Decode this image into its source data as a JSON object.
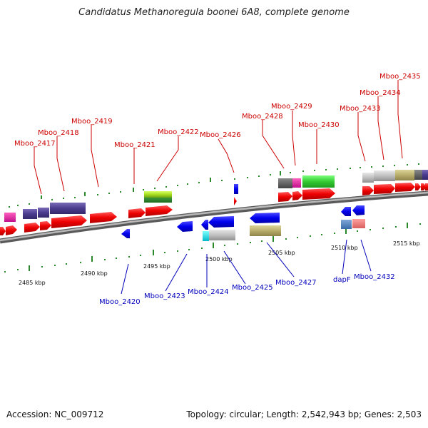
{
  "title": "Candidatus Methanoregula boonei 6A8, complete genome",
  "footer": {
    "accession": "Accession: NC_009712",
    "topology": "Topology: circular; Length: 2,542,943 bp; Genes: 2,503"
  },
  "scale_labels": [
    "2485 kbp",
    "2490 kbp",
    "2495 kbp",
    "2500 kbp",
    "2505 kbp",
    "2510 kbp",
    "2515 kbp"
  ],
  "forward_gene_labels": [
    "Mboo_2417",
    "Mboo_2418",
    "Mboo_2419",
    "Mboo_2421",
    "Mboo_2422",
    "Mboo_2426",
    "Mboo_2428",
    "Mboo_2429",
    "Mboo_2430",
    "Mboo_2433",
    "Mboo_2434",
    "Mboo_2435"
  ],
  "reverse_gene_labels": [
    "Mboo_2420",
    "Mboo_2423",
    "Mboo_2424",
    "Mboo_2425",
    "Mboo_2427",
    "dapF",
    "Mboo_2432"
  ],
  "colors": {
    "forward_gene": "#ee0000",
    "reverse_gene": "#0000dd",
    "forward_label": "#cc0000",
    "reverse_label": "#0000bb",
    "backbone": "#888888"
  }
}
